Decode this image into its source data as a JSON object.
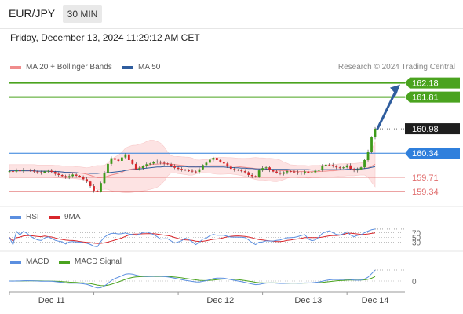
{
  "header": {
    "pair": "EUR/JPY",
    "timeframe": "30 MIN"
  },
  "datetime": "Friday, December 13, 2024 11:29:12 AM CET",
  "legend": {
    "ma20": {
      "label": "MA 20 + Bollinger Bands",
      "color": "#f08c8c"
    },
    "ma50": {
      "label": "MA 50",
      "color": "#2f5d9e"
    }
  },
  "credit": "Research © 2024 Trading Central",
  "rsi_legend": {
    "rsi": "RSI",
    "ma9": "9MA"
  },
  "macd_legend": {
    "macd": "MACD",
    "signal": "MACD Signal"
  },
  "colors": {
    "up": "#3d9a1a",
    "down": "#d8262b",
    "resistance": "#4aa31f",
    "pivot": "#2f7fdc",
    "support": "#e06b6b",
    "price": "#1e1e1e",
    "arrow": "#2f5d9e",
    "band": "#fde3e3"
  },
  "chart_data": {
    "type": "candlestick",
    "price_axis": {
      "min": 159.05,
      "max": 162.42
    },
    "levels": [
      {
        "label": "162.18",
        "value": 162.18,
        "kind": "resistance"
      },
      {
        "label": "161.81",
        "value": 161.81,
        "kind": "resistance"
      },
      {
        "label": "160.98",
        "value": 160.98,
        "kind": "current"
      },
      {
        "label": "160.34",
        "value": 160.34,
        "kind": "pivot"
      },
      {
        "label": "159.71",
        "value": 159.71,
        "kind": "support"
      },
      {
        "label": "159.34",
        "value": 159.34,
        "kind": "support"
      }
    ],
    "x_labels": [
      "Dec 11",
      "Dec 12",
      "Dec 13",
      "Dec 14"
    ],
    "closes": [
      159.87,
      159.86,
      159.89,
      159.88,
      159.91,
      159.9,
      159.88,
      159.86,
      159.84,
      159.83,
      159.86,
      159.88,
      159.85,
      159.8,
      159.77,
      159.74,
      159.7,
      159.74,
      159.78,
      159.75,
      159.72,
      159.66,
      159.6,
      159.48,
      159.36,
      159.34,
      159.56,
      159.82,
      160.06,
      160.21,
      160.17,
      160.14,
      160.23,
      160.31,
      160.16,
      160.06,
      159.92,
      159.95,
      160.0,
      160.05,
      160.07,
      160.1,
      160.12,
      160.09,
      160.07,
      160.05,
      160.0,
      159.96,
      159.93,
      159.91,
      159.89,
      159.88,
      159.86,
      159.85,
      159.92,
      160.03,
      160.09,
      160.17,
      160.22,
      160.16,
      160.11,
      160.07,
      159.99,
      159.93,
      159.91,
      159.89,
      159.87,
      159.84,
      159.77,
      159.74,
      159.72,
      159.89,
      159.95,
      159.97,
      159.9,
      159.86,
      159.83,
      159.8,
      159.84,
      159.87,
      159.86,
      159.84,
      159.81,
      159.83,
      159.86,
      159.83,
      159.84,
      159.88,
      159.91,
      160.01,
      160.04,
      160.03,
      160.0,
      159.97,
      159.95,
      159.97,
      160.02,
      159.93,
      159.89,
      159.92,
      159.97,
      160.16,
      160.38,
      160.76,
      160.98
    ],
    "ma20": [
      159.88,
      159.88,
      159.88,
      159.88,
      159.88,
      159.88,
      159.88,
      159.88,
      159.87,
      159.87,
      159.87,
      159.87,
      159.87,
      159.86,
      159.86,
      159.85,
      159.84,
      159.84,
      159.84,
      159.83,
      159.82,
      159.81,
      159.79,
      159.76,
      159.73,
      159.7,
      159.7,
      159.71,
      159.74,
      159.77,
      159.79,
      159.81,
      159.84,
      159.89,
      159.91,
      159.93,
      159.94,
      159.96,
      159.98,
      160.01,
      160.04,
      160.05,
      160.05,
      160.06,
      160.06,
      160.06,
      160.05,
      160.04,
      160.03,
      160.02,
      160.01,
      160.0,
      159.99,
      159.98,
      159.99,
      160.0,
      160.0,
      160.01,
      160.01,
      160.01,
      160.01,
      160.01,
      160.01,
      160.01,
      160.0,
      159.99,
      159.98,
      159.97,
      159.96,
      159.95,
      159.94,
      159.93,
      159.93,
      159.92,
      159.91,
      159.9,
      159.89,
      159.89,
      159.88,
      159.88,
      159.87,
      159.87,
      159.86,
      159.86,
      159.86,
      159.85,
      159.86,
      159.86,
      159.86,
      159.87,
      159.87,
      159.88,
      159.88,
      159.89,
      159.9,
      159.9,
      159.91,
      159.91,
      159.91,
      159.92,
      159.93,
      159.94,
      159.96,
      160.0,
      160.05
    ],
    "ma50": [
      159.88,
      159.88,
      159.88,
      159.88,
      159.88,
      159.88,
      159.88,
      159.88,
      159.87,
      159.87,
      159.87,
      159.87,
      159.86,
      159.86,
      159.86,
      159.85,
      159.84,
      159.84,
      159.83,
      159.83,
      159.82,
      159.82,
      159.82,
      159.81,
      159.81,
      159.81,
      159.82,
      159.82,
      159.83,
      159.84,
      159.85,
      159.86,
      159.87,
      159.89,
      159.9,
      159.91,
      159.92,
      159.93,
      159.94,
      159.95,
      159.96,
      159.97,
      159.98,
      159.98,
      159.99,
      159.99,
      159.99,
      159.99,
      159.99,
      159.99,
      159.99,
      159.98,
      159.98,
      159.98,
      159.98,
      159.98,
      159.98,
      159.98,
      159.98,
      159.98,
      159.98,
      159.98,
      159.97,
      159.97,
      159.96,
      159.96,
      159.95,
      159.95,
      159.94,
      159.94,
      159.93,
      159.93,
      159.93,
      159.93,
      159.92,
      159.92,
      159.92,
      159.92,
      159.92,
      159.92,
      159.91,
      159.91,
      159.91,
      159.91,
      159.91,
      159.91,
      159.9,
      159.9,
      159.9,
      159.91,
      159.91,
      159.91,
      159.91,
      159.91,
      159.91,
      159.91,
      159.92,
      159.92,
      159.92,
      159.93,
      159.93,
      159.94,
      159.95,
      159.97,
      159.99
    ],
    "rsi": {
      "levels": [
        70,
        50,
        30
      ],
      "range": [
        0,
        100
      ]
    },
    "macd": {
      "zero_label": "0"
    }
  }
}
